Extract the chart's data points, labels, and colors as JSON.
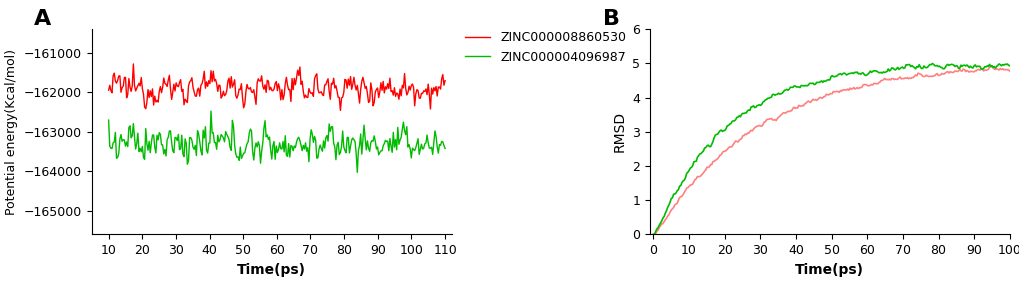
{
  "panel_A": {
    "label": "A",
    "ylabel": "Potential energy(Kcal/mol)",
    "xlabel": "Time(ps)",
    "xlim": [
      5,
      112
    ],
    "ylim": [
      -165600,
      -160400
    ],
    "yticks": [
      -161000,
      -162000,
      -163000,
      -164000,
      -165000
    ],
    "xticks": [
      10,
      20,
      30,
      40,
      50,
      60,
      70,
      80,
      90,
      100,
      110
    ],
    "red_mean": -161900,
    "red_std": 300,
    "green_mean": -163300,
    "green_std": 350,
    "n_points": 300,
    "red_color": "#FF0000",
    "green_color": "#00BB00",
    "red_label": "ZINC000008860530",
    "green_label": "ZINC000004096987",
    "line_width": 1.0
  },
  "panel_B": {
    "label": "B",
    "ylabel": "RMSD",
    "xlabel": "Time(ps)",
    "xlim": [
      -1,
      100
    ],
    "ylim": [
      0,
      6
    ],
    "yticks": [
      0,
      1,
      2,
      3,
      4,
      5,
      6
    ],
    "xticks": [
      0,
      10,
      20,
      30,
      40,
      50,
      60,
      70,
      80,
      90,
      100
    ],
    "red_color": "#FF8080",
    "green_color": "#00BB00",
    "red_label": "ZINC000008860530",
    "green_label": "ZINC000004096987",
    "line_width": 1.2
  },
  "bg_color": "#FFFFFF",
  "tick_fontsize": 9,
  "label_fontsize": 10,
  "legend_fontsize": 9,
  "panel_label_fontsize": 16
}
